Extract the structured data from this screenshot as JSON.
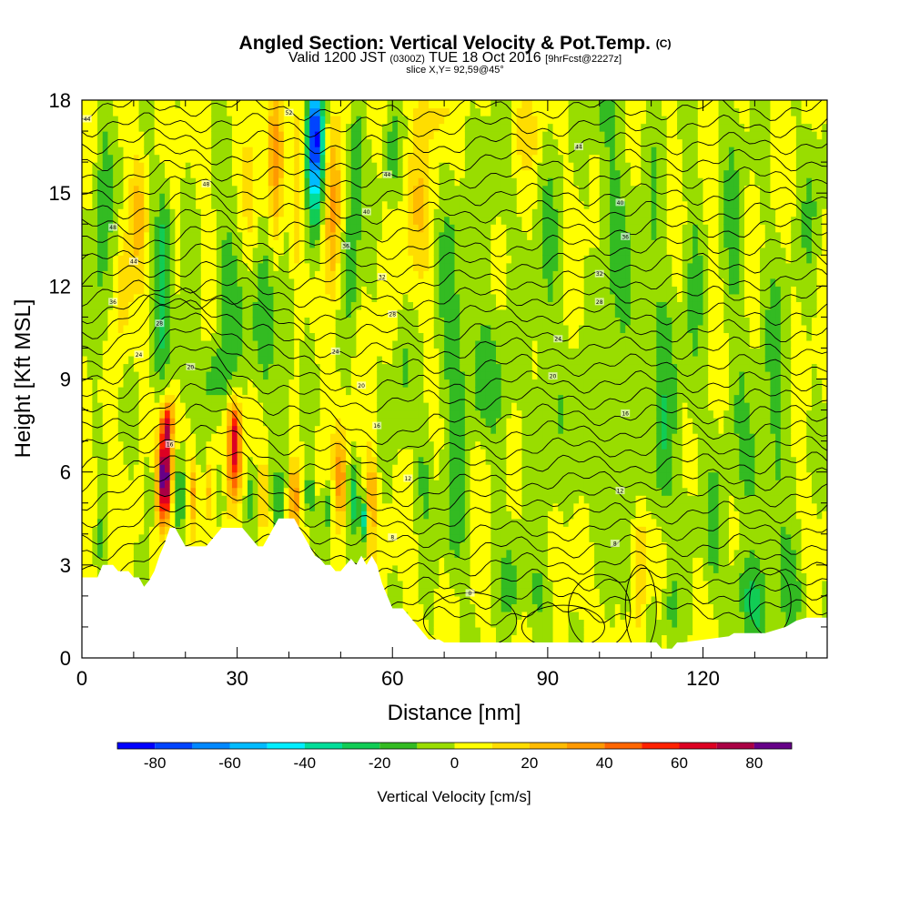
{
  "title": {
    "main": "Angled Section: Vertical Velocity & Pot.Temp.",
    "main_units": "(C)",
    "valid_prefix": "Valid 1200 JST",
    "valid_utc": "(0300Z)",
    "valid_date": "TUE 18 Oct 2016",
    "forecast": "[9hrFcst@2227z]",
    "slice": "slice X,Y= 92,59@45°"
  },
  "chart_data": {
    "type": "heatmap",
    "xlabel": "Distance [nm]",
    "ylabel": "Height [Kft MSL]",
    "xlim": [
      0,
      144
    ],
    "ylim": [
      0,
      18
    ],
    "x_ticks": [
      0,
      30,
      60,
      90,
      120
    ],
    "y_ticks": [
      0,
      3,
      6,
      9,
      12,
      15,
      18
    ],
    "colorbar": {
      "title": "Vertical Velocity [cm/s]",
      "range": [
        -90,
        90
      ],
      "tick_values": [
        -80,
        -60,
        -40,
        -20,
        0,
        20,
        40,
        60,
        80
      ],
      "tick_labels": [
        "-80",
        "-60",
        "-40",
        "-20",
        "0",
        "20",
        "40",
        "60",
        "80"
      ],
      "bins": [
        {
          "from": -90,
          "to": -80,
          "color": "#0000ff"
        },
        {
          "from": -80,
          "to": -70,
          "color": "#0044ff"
        },
        {
          "from": -70,
          "to": -60,
          "color": "#0088ff"
        },
        {
          "from": -60,
          "to": -50,
          "color": "#00bbff"
        },
        {
          "from": -50,
          "to": -40,
          "color": "#00eeff"
        },
        {
          "from": -40,
          "to": -30,
          "color": "#00dd99"
        },
        {
          "from": -30,
          "to": -20,
          "color": "#11cc55"
        },
        {
          "from": -20,
          "to": -10,
          "color": "#33bb22"
        },
        {
          "from": -10,
          "to": 0,
          "color": "#99dd00"
        },
        {
          "from": 0,
          "to": 10,
          "color": "#ffff00"
        },
        {
          "from": 10,
          "to": 20,
          "color": "#ffdd00"
        },
        {
          "from": 20,
          "to": 30,
          "color": "#ffbb00"
        },
        {
          "from": 30,
          "to": 40,
          "color": "#ff9900"
        },
        {
          "from": 40,
          "to": 50,
          "color": "#ff6600"
        },
        {
          "from": 50,
          "to": 60,
          "color": "#ff2200"
        },
        {
          "from": 60,
          "to": 70,
          "color": "#dd0022"
        },
        {
          "from": 70,
          "to": 80,
          "color": "#aa0044"
        },
        {
          "from": 80,
          "to": 90,
          "color": "#660088"
        }
      ]
    },
    "terrain_profile": {
      "x": [
        0,
        3,
        4,
        6,
        7,
        9,
        10,
        11,
        12,
        13,
        14,
        15,
        16,
        17,
        18,
        19,
        20,
        21,
        22,
        23,
        24,
        25,
        26,
        27,
        28,
        29,
        30,
        31,
        32,
        33,
        34,
        35,
        36,
        37,
        38,
        39,
        40,
        41,
        42,
        43,
        44,
        45,
        46,
        47,
        48,
        49,
        50,
        51,
        52,
        53,
        54,
        55,
        56,
        57,
        58,
        59,
        60,
        61,
        62,
        63,
        64,
        65,
        66,
        67,
        68,
        69,
        70,
        100,
        104,
        110,
        111,
        112,
        113,
        114,
        115,
        116,
        125,
        126,
        128,
        132,
        136,
        138,
        140,
        144
      ],
      "y": [
        2.6,
        2.6,
        3.0,
        3.0,
        2.8,
        2.8,
        2.6,
        2.6,
        2.3,
        2.5,
        2.8,
        3.3,
        3.7,
        4.2,
        4.2,
        3.9,
        3.6,
        3.6,
        3.6,
        3.6,
        3.6,
        3.8,
        4.0,
        4.2,
        4.2,
        4.2,
        4.2,
        4.2,
        4.0,
        3.8,
        3.6,
        3.6,
        3.9,
        4.2,
        4.5,
        4.5,
        4.5,
        4.5,
        4.2,
        3.9,
        3.6,
        3.3,
        3.2,
        3.0,
        3.0,
        2.8,
        2.8,
        3.0,
        3.2,
        3.0,
        3.3,
        3.0,
        3.3,
        3.0,
        2.4,
        2.0,
        1.6,
        1.6,
        1.6,
        1.4,
        1.2,
        1.0,
        0.8,
        0.6,
        0.6,
        0.6,
        0.5,
        0.5,
        0.5,
        0.5,
        0.5,
        0.3,
        0.3,
        0.3,
        0.5,
        0.5,
        0.7,
        0.8,
        0.8,
        0.8,
        1.0,
        1.2,
        1.3,
        1.3
      ]
    },
    "isotherm_labels": [
      {
        "x": 1,
        "y": 17.4,
        "text": "44"
      },
      {
        "x": 6,
        "y": 13.9,
        "text": "48"
      },
      {
        "x": 10,
        "y": 12.8,
        "text": "44"
      },
      {
        "x": 6,
        "y": 11.5,
        "text": "36"
      },
      {
        "x": 15,
        "y": 10.8,
        "text": "28"
      },
      {
        "x": 11,
        "y": 9.8,
        "text": "24"
      },
      {
        "x": 21,
        "y": 9.4,
        "text": "20"
      },
      {
        "x": 17,
        "y": 6.9,
        "text": "16"
      },
      {
        "x": 40,
        "y": 17.6,
        "text": "52"
      },
      {
        "x": 24,
        "y": 15.3,
        "text": "48"
      },
      {
        "x": 59,
        "y": 15.6,
        "text": "44"
      },
      {
        "x": 55,
        "y": 14.4,
        "text": "40"
      },
      {
        "x": 51,
        "y": 13.3,
        "text": "36"
      },
      {
        "x": 58,
        "y": 12.3,
        "text": "32"
      },
      {
        "x": 60,
        "y": 11.1,
        "text": "28"
      },
      {
        "x": 49,
        "y": 9.9,
        "text": "24"
      },
      {
        "x": 54,
        "y": 8.8,
        "text": "20"
      },
      {
        "x": 57,
        "y": 7.5,
        "text": "16"
      },
      {
        "x": 63,
        "y": 5.8,
        "text": "12"
      },
      {
        "x": 60,
        "y": 3.9,
        "text": "8"
      },
      {
        "x": 75,
        "y": 2.1,
        "text": "0"
      },
      {
        "x": 96,
        "y": 16.5,
        "text": "44"
      },
      {
        "x": 104,
        "y": 14.7,
        "text": "40"
      },
      {
        "x": 105,
        "y": 13.6,
        "text": "36"
      },
      {
        "x": 100,
        "y": 12.4,
        "text": "32"
      },
      {
        "x": 100,
        "y": 11.5,
        "text": "28"
      },
      {
        "x": 92,
        "y": 10.3,
        "text": "24"
      },
      {
        "x": 91,
        "y": 9.1,
        "text": "20"
      },
      {
        "x": 105,
        "y": 7.9,
        "text": "16"
      },
      {
        "x": 104,
        "y": 5.4,
        "text": "12"
      },
      {
        "x": 103,
        "y": 3.7,
        "text": "8"
      }
    ]
  }
}
